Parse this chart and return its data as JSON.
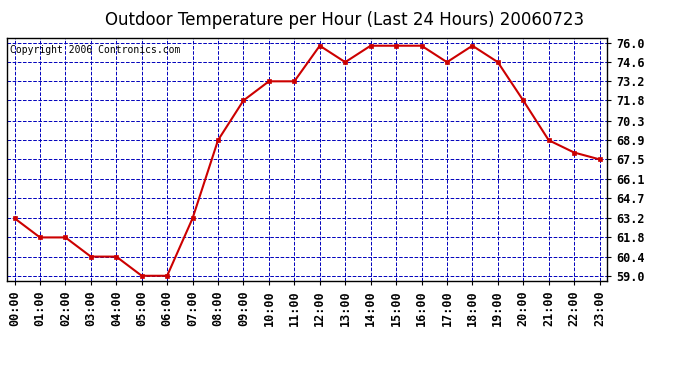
{
  "title": "Outdoor Temperature per Hour (Last 24 Hours) 20060723",
  "copyright": "Copyright 2006 Contronics.com",
  "hours": [
    "00:00",
    "01:00",
    "02:00",
    "03:00",
    "04:00",
    "05:00",
    "06:00",
    "07:00",
    "08:00",
    "09:00",
    "10:00",
    "11:00",
    "12:00",
    "13:00",
    "14:00",
    "15:00",
    "16:00",
    "17:00",
    "18:00",
    "19:00",
    "20:00",
    "21:00",
    "22:00",
    "23:00"
  ],
  "temperatures": [
    63.2,
    61.8,
    61.8,
    60.4,
    60.4,
    59.0,
    59.0,
    63.2,
    68.9,
    71.8,
    73.2,
    73.2,
    75.8,
    74.6,
    75.8,
    75.8,
    75.8,
    74.6,
    75.8,
    74.6,
    71.8,
    68.9,
    68.0,
    67.5
  ],
  "y_ticks": [
    59.0,
    60.4,
    61.8,
    63.2,
    64.7,
    66.1,
    67.5,
    68.9,
    70.3,
    71.8,
    73.2,
    74.6,
    76.0
  ],
  "y_min": 58.6,
  "y_max": 76.4,
  "line_color": "#cc0000",
  "marker_color": "#cc0000",
  "background_color": "#ffffff",
  "plot_bg_color": "#ffffff",
  "grid_color": "#0000bb",
  "title_fontsize": 12,
  "copyright_fontsize": 7,
  "tick_fontsize": 8.5
}
